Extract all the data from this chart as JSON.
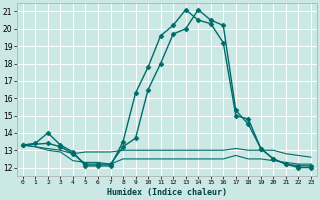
{
  "xlabel": "Humidex (Indice chaleur)",
  "xlim": [
    -0.5,
    23.5
  ],
  "ylim": [
    11.5,
    21.5
  ],
  "yticks": [
    12,
    13,
    14,
    15,
    16,
    17,
    18,
    19,
    20,
    21
  ],
  "xticks": [
    0,
    1,
    2,
    3,
    4,
    5,
    6,
    7,
    8,
    9,
    10,
    11,
    12,
    13,
    14,
    15,
    16,
    17,
    18,
    19,
    20,
    21,
    22,
    23
  ],
  "bg_color": "#cce8e4",
  "grid_color": "#ffffff",
  "line_color": "#006b6b",
  "lines": [
    {
      "x": [
        0,
        1,
        2,
        3,
        4,
        5,
        6,
        7,
        8,
        9,
        10,
        11,
        12,
        13,
        14,
        15,
        16,
        17,
        18,
        19,
        20,
        21,
        22,
        23
      ],
      "y": [
        13.3,
        13.4,
        14.0,
        13.3,
        12.9,
        12.1,
        12.1,
        12.1,
        13.5,
        16.3,
        17.8,
        19.6,
        20.2,
        21.1,
        20.5,
        20.3,
        19.2,
        15.0,
        14.8,
        13.1,
        12.5,
        12.2,
        12.1,
        12.1
      ],
      "marker": "D",
      "markersize": 2.5,
      "linewidth": 1.0
    },
    {
      "x": [
        0,
        1,
        2,
        3,
        4,
        5,
        6,
        7,
        8,
        9,
        10,
        11,
        12,
        13,
        14,
        15,
        16,
        17,
        18,
        19,
        20,
        21,
        22,
        23
      ],
      "y": [
        13.3,
        13.2,
        13.1,
        13.0,
        12.8,
        12.9,
        12.9,
        12.9,
        13.0,
        13.0,
        13.0,
        13.0,
        13.0,
        13.0,
        13.0,
        13.0,
        13.0,
        13.1,
        13.0,
        13.0,
        13.0,
        12.8,
        12.7,
        12.6
      ],
      "marker": null,
      "markersize": 0,
      "linewidth": 0.8
    },
    {
      "x": [
        0,
        1,
        2,
        3,
        4,
        5,
        6,
        7,
        8,
        9,
        10,
        11,
        12,
        13,
        14,
        15,
        16,
        17,
        18,
        19,
        20,
        21,
        22,
        23
      ],
      "y": [
        13.3,
        13.2,
        13.0,
        12.9,
        12.4,
        12.3,
        12.3,
        12.2,
        12.5,
        12.5,
        12.5,
        12.5,
        12.5,
        12.5,
        12.5,
        12.5,
        12.5,
        12.7,
        12.5,
        12.5,
        12.4,
        12.3,
        12.2,
        12.2
      ],
      "marker": null,
      "markersize": 0,
      "linewidth": 0.8
    },
    {
      "x": [
        0,
        2,
        3,
        4,
        5,
        6,
        7,
        8,
        9,
        10,
        11,
        12,
        13,
        14,
        15,
        16,
        17,
        18,
        19,
        20,
        21,
        22,
        23
      ],
      "y": [
        13.3,
        13.4,
        13.2,
        12.8,
        12.2,
        12.2,
        12.2,
        13.2,
        13.7,
        16.5,
        18.0,
        19.7,
        20.0,
        21.1,
        20.5,
        20.2,
        15.3,
        14.5,
        13.1,
        12.5,
        12.2,
        12.0,
        12.0
      ],
      "marker": "D",
      "markersize": 2.5,
      "linewidth": 1.0
    }
  ]
}
